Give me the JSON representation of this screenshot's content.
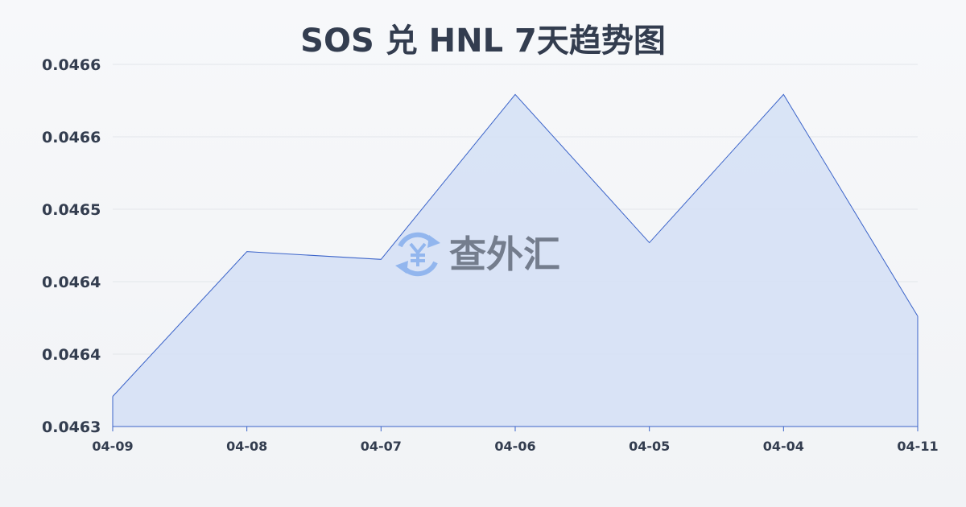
{
  "chart_data": {
    "type": "area",
    "title": "SOS 兑 HNL 7天趋势图",
    "categories": [
      "04-09",
      "04-08",
      "04-07",
      "04-06",
      "04-05",
      "04-04",
      "04-11"
    ],
    "series": [
      {
        "values": [
          0.046327,
          0.046457,
          0.04645,
          0.046598,
          0.046465,
          0.046598,
          0.046399
        ]
      }
    ],
    "ylim": [
      0.0463,
      0.046625
    ],
    "y_ticks": [
      0.0463,
      0.046365,
      0.04643,
      0.046495,
      0.04656,
      0.046625
    ],
    "y_tick_labels": [
      "0.0463",
      "0.0464",
      "0.0464",
      "0.0465",
      "0.0466",
      "0.0466"
    ],
    "grid": true,
    "colors": {
      "line": "#3a63c9",
      "fill": "#d6e1f5",
      "grid": "#e3e6ea",
      "text": "#333d4f"
    }
  },
  "watermark": {
    "text": "查外汇",
    "icon": "yen-exchange-icon",
    "icon_color": "#8fb4ee"
  }
}
